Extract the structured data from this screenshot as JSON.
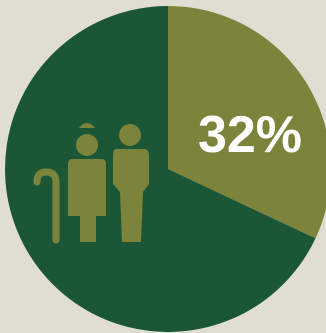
{
  "colors": {
    "background": "#e0ded2",
    "highlight_slice": "#7c843c",
    "remainder_slice": "#1b5636",
    "icon": "#7c843c",
    "label": "#ffffff"
  },
  "icon": "elderly-couple-with-cane-icon",
  "chart_data": {
    "type": "pie",
    "values": [
      32,
      68
    ],
    "data_labels": [
      "32%"
    ],
    "title": "",
    "legend": "none"
  }
}
